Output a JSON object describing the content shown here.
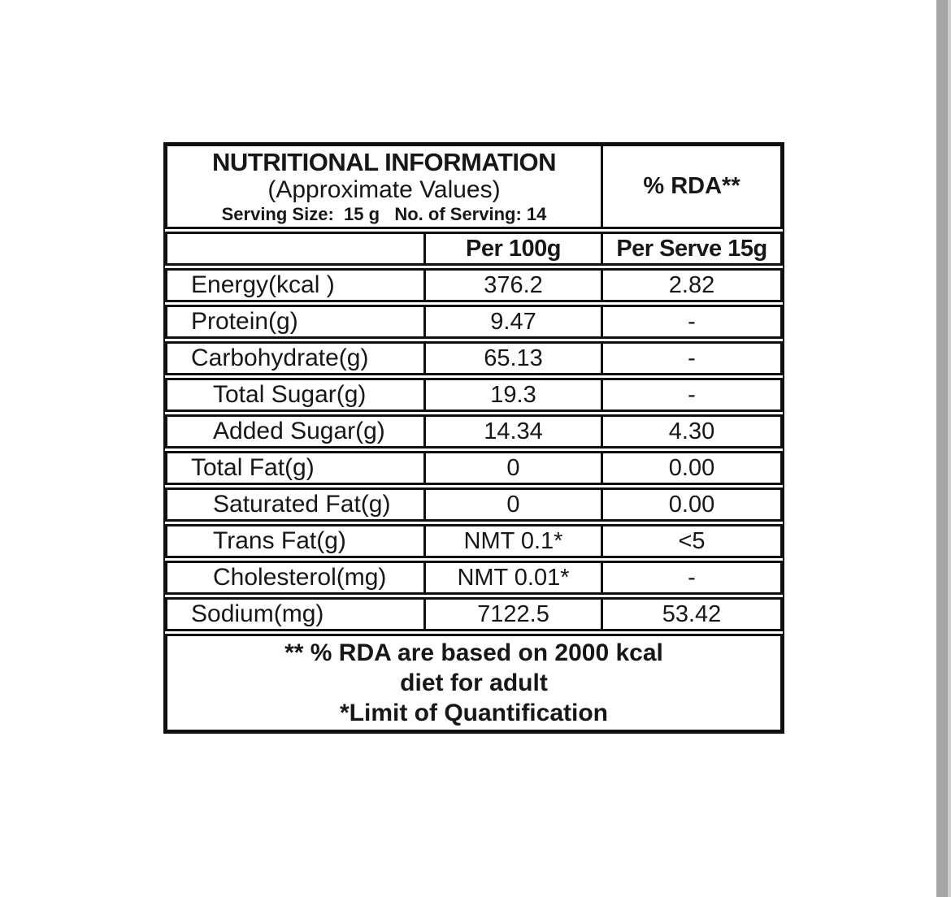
{
  "colors": {
    "background": "#ffffff",
    "border": "#0f0f0f",
    "text": "#171717",
    "scrollbar": "#a6a6a6",
    "scrollbar_edge": "#cccccc"
  },
  "table": {
    "header": {
      "title": "NUTRITIONAL INFORMATION",
      "subtitle": "(Approximate Values)",
      "serving_line": "Serving Size:  15 g   No. of Serving: 14",
      "rda_header": "% RDA**"
    },
    "columns": {
      "label": "",
      "per_100g": "Per 100g",
      "per_serve": "Per Serve 15g"
    },
    "rows": [
      {
        "label": "Energy(kcal )",
        "per_100g": "376.2",
        "per_serve": "2.82",
        "indent": false
      },
      {
        "label": "Protein(g)",
        "per_100g": "9.47",
        "per_serve": "-",
        "indent": false
      },
      {
        "label": "Carbohydrate(g)",
        "per_100g": "65.13",
        "per_serve": "-",
        "indent": false
      },
      {
        "label": "Total Sugar(g)",
        "per_100g": "19.3",
        "per_serve": "-",
        "indent": true
      },
      {
        "label": "Added Sugar(g)",
        "per_100g": "14.34",
        "per_serve": "4.30",
        "indent": true
      },
      {
        "label": "Total Fat(g)",
        "per_100g": "0",
        "per_serve": "0.00",
        "indent": false
      },
      {
        "label": "Saturated Fat(g)",
        "per_100g": "0",
        "per_serve": "0.00",
        "indent": true
      },
      {
        "label": "Trans Fat(g)",
        "per_100g": "NMT 0.1*",
        "per_serve": "<5",
        "indent": true
      },
      {
        "label": "Cholesterol(mg)",
        "per_100g": "NMT 0.01*",
        "per_serve": "-",
        "indent": true
      },
      {
        "label": "Sodium(mg)",
        "per_100g": "7122.5",
        "per_serve": "53.42",
        "indent": false
      }
    ],
    "footnote_lines": [
      "** % RDA are based on 2000 kcal",
      "diet for adult",
      "*Limit of Quantification"
    ]
  }
}
